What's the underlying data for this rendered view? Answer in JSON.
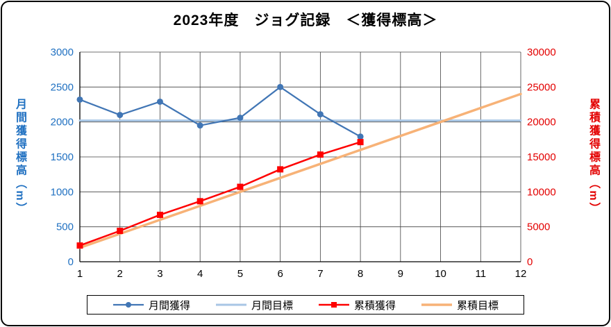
{
  "chart_data": {
    "type": "line",
    "title": "2023年度　ジョグ記録　＜獲得標高＞",
    "x": [
      1,
      2,
      3,
      4,
      5,
      6,
      7,
      8,
      9,
      10,
      11,
      12
    ],
    "xlabel": "",
    "grid": true,
    "legend_position": "bottom",
    "left_axis": {
      "label": "月間獲得標高（m）",
      "min": 0,
      "max": 3000,
      "step": 500,
      "color": "#1F70C1",
      "ticks": [
        0,
        500,
        1000,
        1500,
        2000,
        2500,
        3000
      ]
    },
    "right_axis": {
      "label": "累積獲得標高（m）",
      "min": 0,
      "max": 30000,
      "step": 5000,
      "color": "#E30000",
      "ticks": [
        0,
        5000,
        10000,
        15000,
        20000,
        25000,
        30000
      ]
    },
    "series": [
      {
        "name": "月間獲得",
        "axis": "left",
        "color": "#4176B5",
        "marker": "circle",
        "width": 2.25,
        "values": [
          2320,
          2100,
          2290,
          1950,
          2060,
          2500,
          2110,
          1790
        ]
      },
      {
        "name": "月間目標",
        "axis": "left",
        "color": "#A8C6E5",
        "marker": "none",
        "width": 3,
        "values": [
          2020,
          2020,
          2020,
          2020,
          2020,
          2020,
          2020,
          2020,
          2020,
          2020,
          2020,
          2020
        ]
      },
      {
        "name": "累積獲得",
        "axis": "right",
        "color": "#FE0000",
        "marker": "square",
        "width": 2.5,
        "values": [
          2320,
          4420,
          6710,
          8660,
          10720,
          13220,
          15330,
          17120
        ]
      },
      {
        "name": "累積目標",
        "axis": "right",
        "color": "#F7B277",
        "marker": "none",
        "width": 3.5,
        "values": [
          2000,
          4000,
          6000,
          8000,
          10000,
          12000,
          14000,
          16000,
          18000,
          20000,
          22000,
          24000
        ]
      }
    ]
  }
}
